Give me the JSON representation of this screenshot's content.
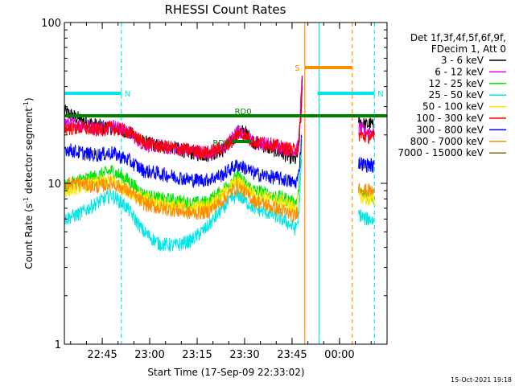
{
  "chart_data": {
    "type": "line",
    "title": "RHESSI Count Rates",
    "xlabel": "Start Time (17-Sep-09 22:33:02)",
    "ylabel_main": "Count Rate (s",
    "ylabel_sup1": "-1",
    "ylabel_mid": " detector segment",
    "ylabel_sup2": "-1",
    "ylabel_end": ")",
    "yscale": "log",
    "ylim": [
      1,
      100
    ],
    "y_ticks": [
      {
        "value": 1,
        "label": "1"
      },
      {
        "value": 10,
        "label": "10"
      },
      {
        "value": 100,
        "label": "100"
      }
    ],
    "xlim_minutes": [
      0,
      102
    ],
    "x_ticks": [
      {
        "minute": 11.97,
        "label": "22:45"
      },
      {
        "minute": 26.97,
        "label": "23:00"
      },
      {
        "minute": 41.97,
        "label": "23:15"
      },
      {
        "minute": 56.97,
        "label": "23:30"
      },
      {
        "minute": 71.97,
        "label": "23:45"
      },
      {
        "minute": 86.97,
        "label": "00:00"
      }
    ],
    "legend_header": [
      "Det 1f,3f,4f,5f,6f,9f,",
      "FDecim 1, Att 0"
    ],
    "legend_position": "right",
    "series": [
      {
        "name": "3 - 6 keV",
        "color": "#000000",
        "points": [
          [
            0,
            28
          ],
          [
            5,
            25
          ],
          [
            10,
            23
          ],
          [
            15,
            22
          ],
          [
            20,
            21
          ],
          [
            25,
            18
          ],
          [
            30,
            17
          ],
          [
            35,
            16.5
          ],
          [
            40,
            15.5
          ],
          [
            45,
            15
          ],
          [
            50,
            16
          ],
          [
            53,
            18
          ],
          [
            55,
            21
          ],
          [
            57,
            21
          ],
          [
            60,
            18
          ],
          [
            65,
            16.5
          ],
          [
            70,
            15
          ],
          [
            73,
            14
          ],
          [
            74,
            15.5
          ],
          [
            75,
            35
          ],
          [
            75.3,
            45
          ]
        ],
        "points2": [
          [
            93,
            25
          ],
          [
            95,
            23
          ],
          [
            97,
            23.5
          ],
          [
            98,
            22
          ]
        ]
      },
      {
        "name": "6 - 12 keV",
        "color": "#e600e6",
        "points": [
          [
            0,
            24
          ],
          [
            5,
            23
          ],
          [
            10,
            22
          ],
          [
            15,
            23
          ],
          [
            20,
            21
          ],
          [
            25,
            17.5
          ],
          [
            30,
            17
          ],
          [
            35,
            16.5
          ],
          [
            40,
            16
          ],
          [
            45,
            15.5
          ],
          [
            50,
            16.5
          ],
          [
            53,
            19
          ],
          [
            55,
            21
          ],
          [
            57,
            20
          ],
          [
            60,
            18
          ],
          [
            65,
            17.5
          ],
          [
            70,
            16.5
          ],
          [
            73,
            16
          ],
          [
            74,
            17
          ],
          [
            75,
            40
          ],
          [
            75.3,
            48
          ]
        ],
        "points2": [
          [
            93,
            22
          ],
          [
            95,
            21
          ],
          [
            97,
            21
          ],
          [
            98,
            20
          ]
        ]
      },
      {
        "name": "12 - 25 keV",
        "color": "#00e600",
        "points": [
          [
            0,
            9.5
          ],
          [
            5,
            10.5
          ],
          [
            10,
            11
          ],
          [
            15,
            12
          ],
          [
            20,
            10.5
          ],
          [
            25,
            8.5
          ],
          [
            30,
            8
          ],
          [
            35,
            7.8
          ],
          [
            40,
            7.5
          ],
          [
            45,
            7.6
          ],
          [
            50,
            9
          ],
          [
            53,
            10.5
          ],
          [
            55,
            11
          ],
          [
            57,
            10
          ],
          [
            60,
            9
          ],
          [
            65,
            8.5
          ],
          [
            70,
            8
          ],
          [
            73,
            7.5
          ],
          [
            74,
            8.5
          ],
          [
            75,
            18
          ]
        ],
        "points2": [
          [
            93,
            9
          ],
          [
            95,
            8.5
          ],
          [
            97,
            8.5
          ],
          [
            98,
            8
          ]
        ]
      },
      {
        "name": "25 - 50 keV",
        "color": "#00e6e6",
        "points": [
          [
            0,
            6
          ],
          [
            5,
            6.5
          ],
          [
            10,
            7.5
          ],
          [
            15,
            8.5
          ],
          [
            20,
            7
          ],
          [
            25,
            5
          ],
          [
            30,
            4.2
          ],
          [
            35,
            4.1
          ],
          [
            40,
            4.4
          ],
          [
            45,
            5.3
          ],
          [
            50,
            7
          ],
          [
            53,
            8
          ],
          [
            55,
            8.5
          ],
          [
            57,
            7.8
          ],
          [
            60,
            7
          ],
          [
            65,
            6.5
          ],
          [
            70,
            5.8
          ],
          [
            73,
            5.2
          ],
          [
            74,
            6
          ],
          [
            75,
            14
          ]
        ],
        "points2": [
          [
            93,
            6.5
          ],
          [
            95,
            6
          ],
          [
            97,
            6
          ],
          [
            98,
            5.8
          ]
        ]
      },
      {
        "name": "50 - 100 keV",
        "color": "#ffe600",
        "points": [
          [
            0,
            9
          ],
          [
            5,
            9.5
          ],
          [
            10,
            10
          ],
          [
            15,
            10.5
          ],
          [
            20,
            9
          ],
          [
            25,
            8
          ],
          [
            30,
            7.5
          ],
          [
            35,
            7.2
          ],
          [
            40,
            7
          ],
          [
            45,
            7.2
          ],
          [
            50,
            8.5
          ],
          [
            53,
            9.8
          ],
          [
            55,
            10.2
          ],
          [
            57,
            9.5
          ],
          [
            60,
            8.5
          ],
          [
            65,
            8
          ],
          [
            70,
            7.5
          ],
          [
            73,
            7
          ],
          [
            74,
            8
          ]
        ],
        "points2": [
          [
            93,
            8.5
          ],
          [
            95,
            8
          ],
          [
            97,
            8
          ],
          [
            98,
            7.6
          ]
        ]
      },
      {
        "name": "100 - 300 keV",
        "color": "#ff0000",
        "points": [
          [
            0,
            22
          ],
          [
            5,
            22
          ],
          [
            10,
            21.5
          ],
          [
            15,
            22
          ],
          [
            20,
            21
          ],
          [
            25,
            18
          ],
          [
            30,
            17
          ],
          [
            35,
            16.5
          ],
          [
            40,
            16
          ],
          [
            45,
            15.5
          ],
          [
            50,
            16.5
          ],
          [
            53,
            18.5
          ],
          [
            55,
            20.5
          ],
          [
            57,
            20
          ],
          [
            60,
            18
          ],
          [
            65,
            17.5
          ],
          [
            70,
            16.5
          ],
          [
            73,
            16
          ],
          [
            74,
            17
          ],
          [
            75,
            30
          ],
          [
            75.3,
            42
          ]
        ],
        "points2": [
          [
            93,
            20
          ],
          [
            95,
            19.5
          ],
          [
            97,
            19.5
          ],
          [
            98,
            19
          ]
        ]
      },
      {
        "name": "300 - 800 keV",
        "color": "#0000ff",
        "points": [
          [
            0,
            16.5
          ],
          [
            5,
            15.5
          ],
          [
            10,
            15
          ],
          [
            15,
            15.5
          ],
          [
            20,
            14
          ],
          [
            25,
            12
          ],
          [
            30,
            11.5
          ],
          [
            35,
            11
          ],
          [
            40,
            10.5
          ],
          [
            45,
            10.5
          ],
          [
            50,
            11.3
          ],
          [
            53,
            12.5
          ],
          [
            55,
            13
          ],
          [
            57,
            12.5
          ],
          [
            60,
            11.5
          ],
          [
            65,
            11
          ],
          [
            70,
            10.5
          ],
          [
            73,
            10
          ],
          [
            74,
            11
          ],
          [
            75,
            20
          ]
        ],
        "points2": [
          [
            93,
            13.5
          ],
          [
            95,
            13
          ],
          [
            97,
            13
          ],
          [
            98,
            12.5
          ]
        ]
      },
      {
        "name": "800 - 7000 keV",
        "color": "#ff8c00",
        "points": [
          [
            0,
            10
          ],
          [
            5,
            10
          ],
          [
            10,
            9.5
          ],
          [
            15,
            10
          ],
          [
            20,
            9
          ],
          [
            25,
            7.5
          ],
          [
            30,
            7
          ],
          [
            35,
            6.8
          ],
          [
            40,
            6.5
          ],
          [
            45,
            6.6
          ],
          [
            50,
            7.8
          ],
          [
            53,
            9
          ],
          [
            55,
            9.5
          ],
          [
            57,
            8.8
          ],
          [
            60,
            7.8
          ],
          [
            65,
            7.2
          ],
          [
            70,
            6.6
          ],
          [
            73,
            6.2
          ],
          [
            74,
            7
          ]
        ],
        "points2": [
          [
            93,
            9.5
          ],
          [
            95,
            9
          ],
          [
            97,
            9
          ],
          [
            98,
            8.7
          ]
        ]
      },
      {
        "name": "7000 - 15000 keV",
        "color": "#8b6914",
        "points": [],
        "points2": []
      }
    ],
    "attenuator_states": [
      {
        "label": "N",
        "color": "#00e6e6",
        "start_min": 0,
        "end_min": 18,
        "level": 78
      },
      {
        "label": "N",
        "color": "#00e6e6",
        "start_min": 80,
        "end_min": 98,
        "level": 78
      },
      {
        "label": "S",
        "color": "#ff8c00",
        "start_min": 76,
        "end_min": 91,
        "level": 86
      },
      {
        "label": "RD0",
        "color": "#008000",
        "start_min": 0,
        "end_min": 102,
        "level": 71
      },
      {
        "label": "RD4",
        "color": "#008000",
        "start_min": 53,
        "end_min": 59,
        "level": 63
      }
    ],
    "vertical_lines": [
      {
        "minute": 0,
        "color": "#00e6e6",
        "style": "solid"
      },
      {
        "minute": 18,
        "color": "#00e6e6",
        "style": "dashed"
      },
      {
        "minute": 76,
        "color": "#ff8c00",
        "style": "solid"
      },
      {
        "minute": 80.5,
        "color": "#00e6e6",
        "style": "solid"
      },
      {
        "minute": 91,
        "color": "#ff8c00",
        "style": "dashed"
      },
      {
        "minute": 98,
        "color": "#00e6e6",
        "style": "dashed"
      }
    ],
    "timestamp": "15-Oct-2021 19:18"
  }
}
